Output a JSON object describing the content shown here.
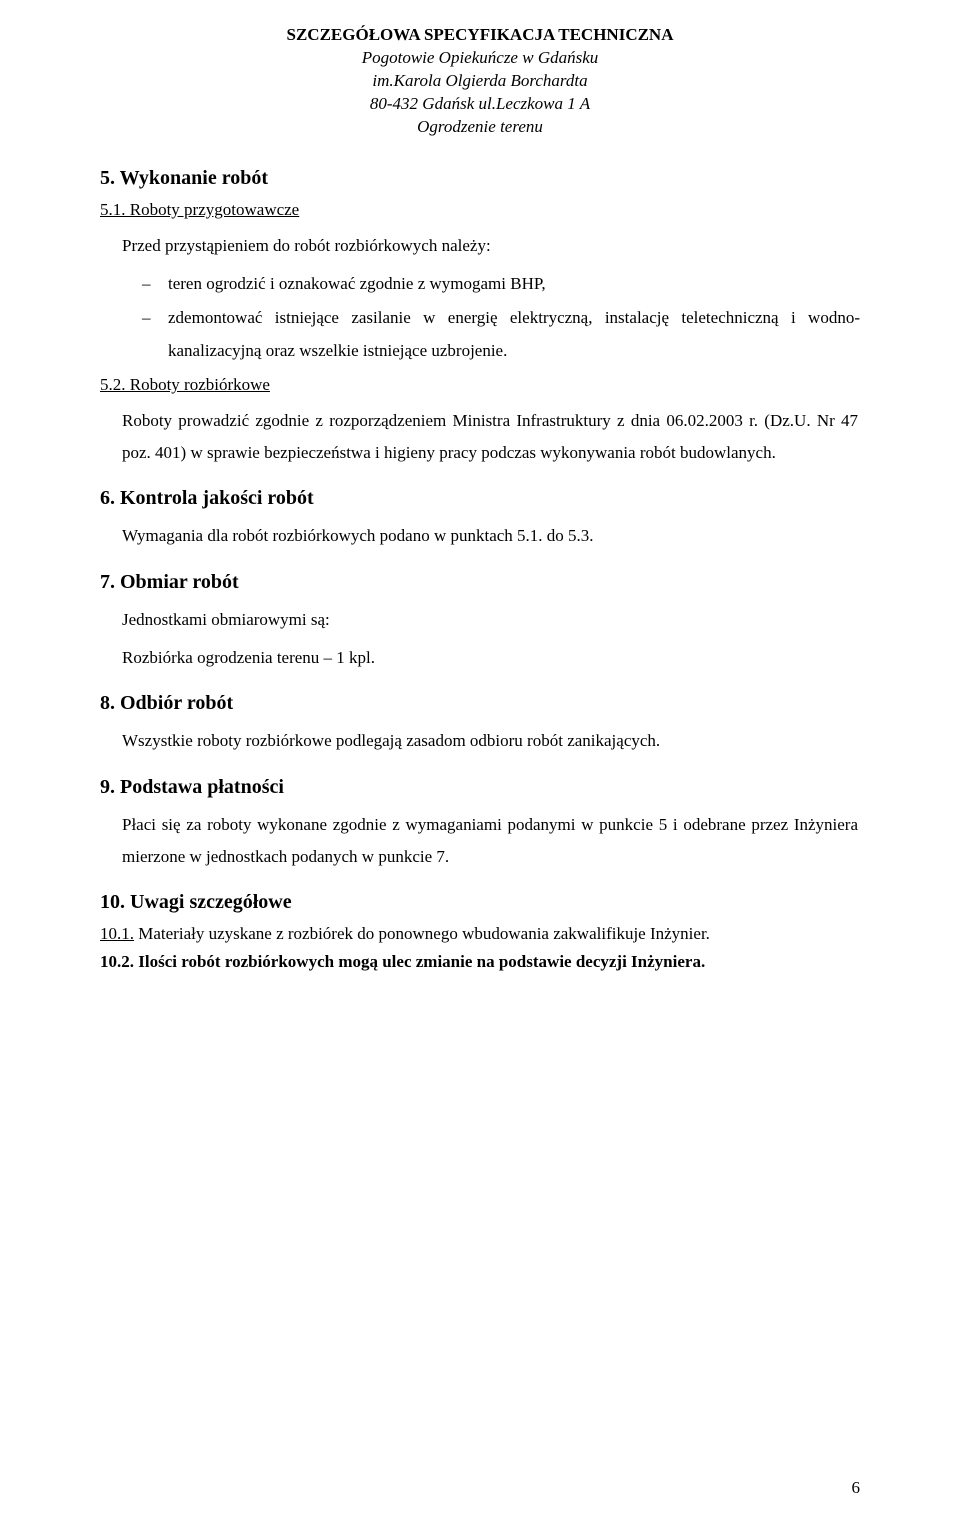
{
  "header": {
    "title": "SZCZEGÓŁOWA SPECYFIKACJA TECHNICZNA",
    "line1": "Pogotowie Opiekuńcze w Gdańsku",
    "line2": "im.Karola Olgierda Borchardta",
    "line3": "80-432 Gdańsk ul.Leczkowa 1 A",
    "line4": "Ogrodzenie terenu"
  },
  "s5": {
    "heading": "5. Wykonanie robót",
    "s51": {
      "heading": "5.1. Roboty przygotowawcze",
      "intro": "Przed przystąpieniem do robót rozbiórkowych należy:",
      "bullets": [
        "teren ogrodzić i oznakować zgodnie z wymogami BHP,",
        "zdemontować istniejące zasilanie w energię elektryczną, instalację teletechniczną i wodno-kanalizacyjną oraz wszelkie istniejące uzbrojenie."
      ]
    },
    "s52": {
      "heading": "5.2. Roboty rozbiórkowe",
      "para": "Roboty prowadzić zgodnie z rozporządzeniem Ministra Infrastruktury z dnia 06.02.2003 r. (Dz.U. Nr 47 poz. 401) w sprawie bezpieczeństwa i higieny pracy podczas wykonywania robót budowlanych."
    }
  },
  "s6": {
    "heading": "6. Kontrola jakości robót",
    "para": "Wymagania dla robót rozbiórkowych podano w punktach 5.1. do 5.3."
  },
  "s7": {
    "heading": "7. Obmiar robót",
    "p1": "Jednostkami obmiarowymi są:",
    "p2": "Rozbiórka ogrodzenia terenu – 1 kpl."
  },
  "s8": {
    "heading": "8. Odbiór robót",
    "para": "Wszystkie roboty rozbiórkowe podlegają zasadom odbioru robót zanikających."
  },
  "s9": {
    "heading": "9. Podstawa płatności",
    "para": "Płaci się za roboty wykonane zgodnie z wymaganiami podanymi w punkcie 5 i odebrane przez Inżyniera mierzone w jednostkach podanych w punkcie 7."
  },
  "s10": {
    "heading": "10. Uwagi szczegółowe",
    "p1_prefix": "10.1.",
    "p1_rest": " Materiały uzyskane z rozbiórek do ponownego wbudowania zakwalifikuje Inżynier.",
    "p2": "10.2. Ilości robót rozbiórkowych mogą ulec zmianie na podstawie decyzji Inżyniera."
  },
  "page_number": "6"
}
